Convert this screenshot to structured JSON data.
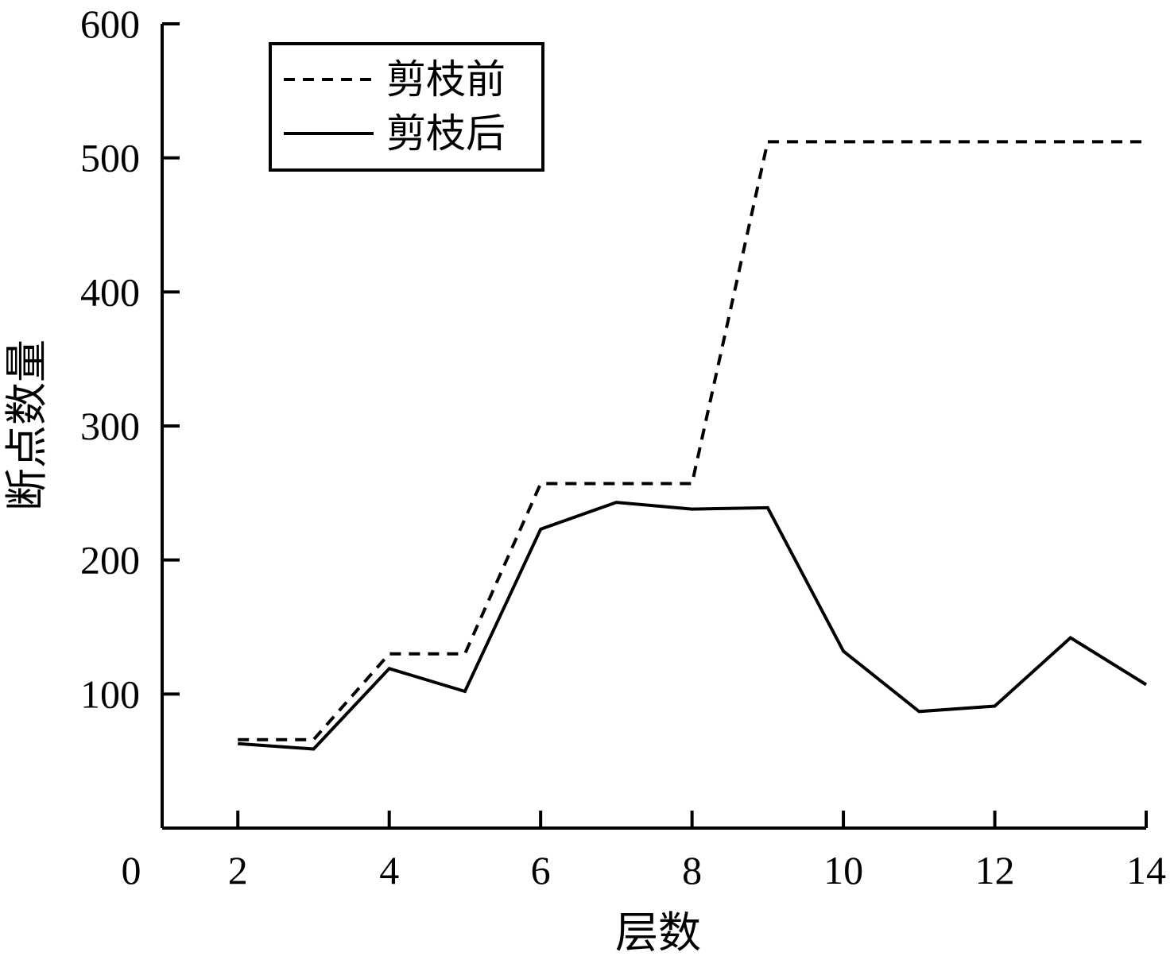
{
  "chart_data": {
    "type": "line",
    "title": "",
    "xlabel": "层数",
    "ylabel": "断点数量",
    "xlim": [
      1,
      14
    ],
    "ylim": [
      0,
      600
    ],
    "xticks": [
      2,
      4,
      6,
      8,
      10,
      12,
      14
    ],
    "yticks": [
      100,
      200,
      300,
      400,
      500,
      600
    ],
    "origin_label": "0",
    "grid": false,
    "legend_position": "top-left",
    "series": [
      {
        "name": "剪枝前",
        "style": "dashed",
        "color": "#000000",
        "x": [
          2,
          3,
          4,
          5,
          6,
          7,
          8,
          9,
          10,
          11,
          12,
          13,
          14
        ],
        "y": [
          66,
          66,
          130,
          130,
          257,
          257,
          257,
          512,
          512,
          512,
          512,
          512,
          512
        ]
      },
      {
        "name": "剪枝后",
        "style": "solid",
        "color": "#000000",
        "x": [
          2,
          3,
          4,
          5,
          6,
          7,
          8,
          9,
          10,
          11,
          12,
          13,
          14
        ],
        "y": [
          63,
          59,
          119,
          102,
          223,
          243,
          238,
          239,
          132,
          87,
          91,
          142,
          107
        ]
      }
    ]
  }
}
